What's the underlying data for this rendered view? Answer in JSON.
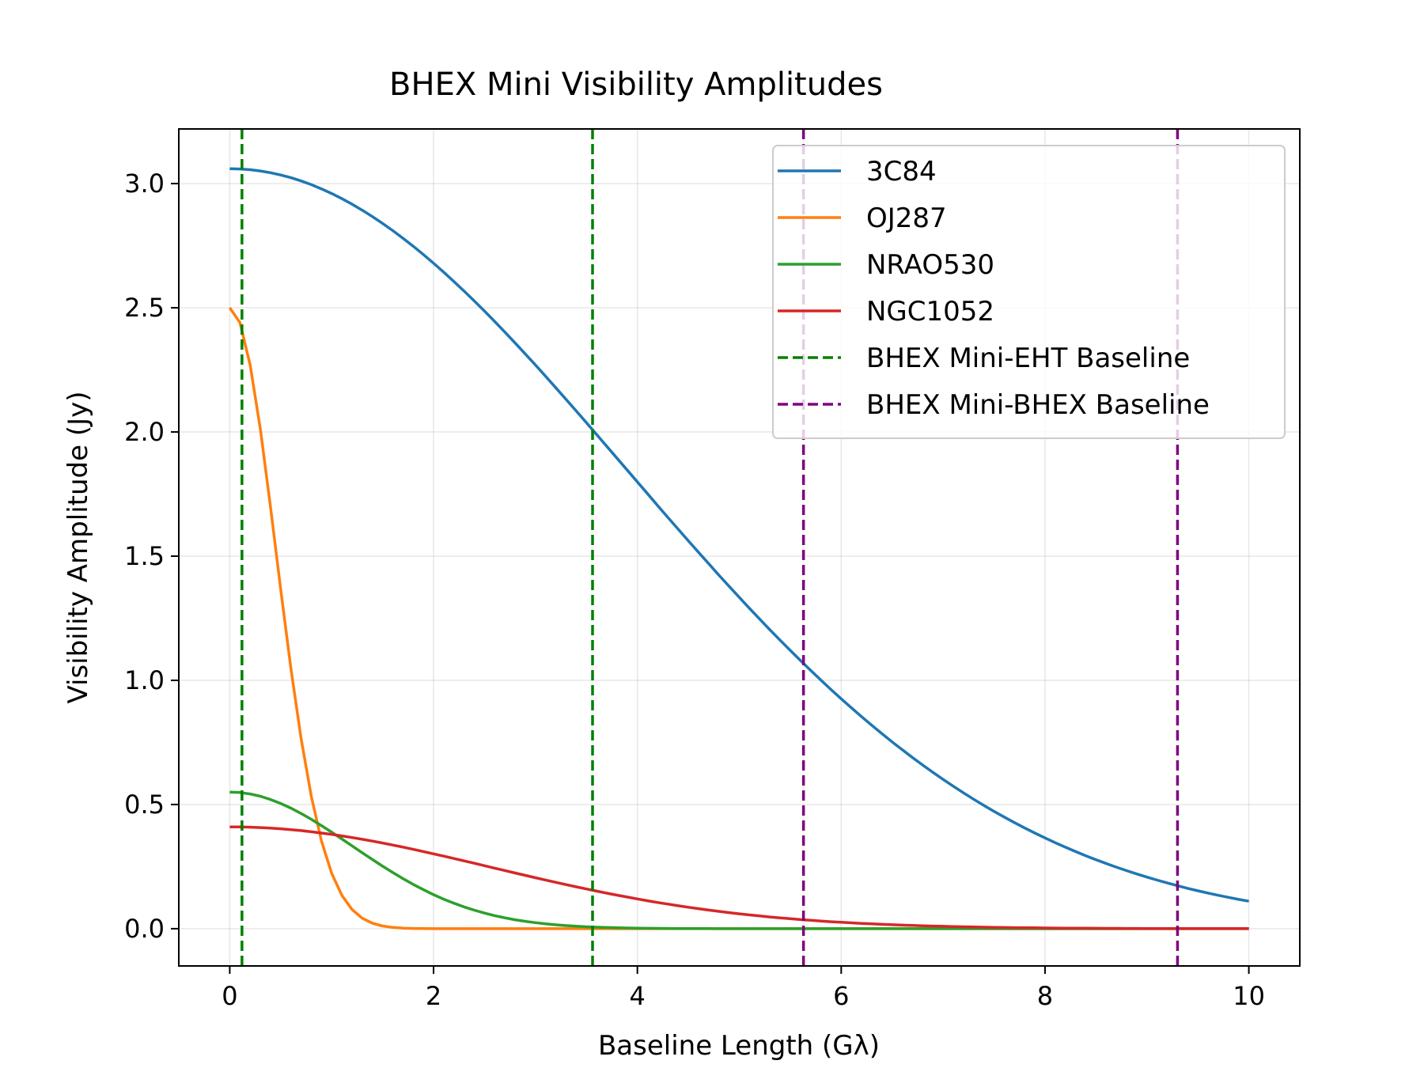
{
  "chart_data": {
    "type": "line",
    "title": "BHEX Mini Visibility Amplitudes",
    "xlabel": "Baseline Length (Gλ)",
    "ylabel": "Visibility Amplitude (Jy)",
    "xlim": [
      -0.5,
      10.5
    ],
    "ylim": [
      -0.15,
      3.22
    ],
    "xticks": [
      0,
      2,
      4,
      6,
      8,
      10
    ],
    "xtick_labels": [
      "0",
      "2",
      "4",
      "6",
      "8",
      "10"
    ],
    "yticks": [
      0.0,
      0.5,
      1.0,
      1.5,
      2.0,
      2.5,
      3.0
    ],
    "ytick_labels": [
      "0.0",
      "0.5",
      "1.0",
      "1.5",
      "2.0",
      "2.5",
      "3.0"
    ],
    "grid": true,
    "legend_position": "top-right",
    "series": [
      {
        "name": "3C84",
        "color": "#1f77b4",
        "style": "solid",
        "amplitude": 3.06,
        "sigma": 3.88
      },
      {
        "name": "OJ287",
        "color": "#ff7f0e",
        "style": "solid",
        "amplitude": 2.5,
        "sigma": 0.455
      },
      {
        "name": "NRAO530",
        "color": "#2ca02c",
        "style": "solid",
        "amplitude": 0.55,
        "sigma": 1.2
      },
      {
        "name": "NGC1052",
        "color": "#d62728",
        "style": "solid",
        "amplitude": 0.41,
        "sigma": 2.55
      }
    ],
    "x_samples": {
      "start": 0,
      "end": 10,
      "count": 101
    },
    "vlines": [
      {
        "name": "BHEX Mini-EHT Baseline",
        "color": "#008000",
        "style": "dashed",
        "x": [
          0.12,
          3.56
        ]
      },
      {
        "name": "BHEX Mini-BHEX Baseline",
        "color": "#800080",
        "style": "dashed",
        "x": [
          5.63,
          9.3
        ]
      }
    ]
  }
}
